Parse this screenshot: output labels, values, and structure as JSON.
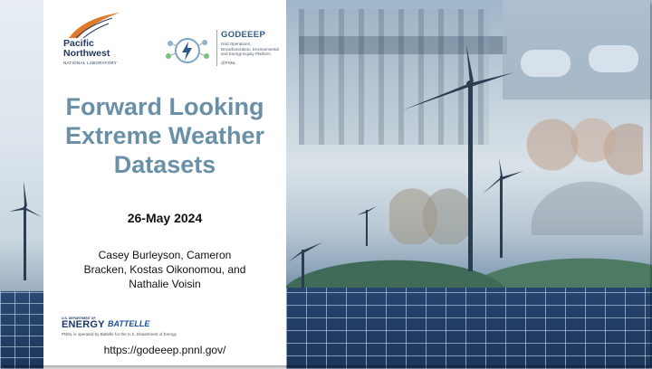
{
  "slide": {
    "title_lines": [
      "Forward Looking",
      "Extreme Weather",
      "Datasets"
    ],
    "date": "26-May 2024",
    "authors_lines": [
      "Casey Burleyson, Cameron",
      "Bracken, Kostas Oikonomou, and",
      "Nathalie Voisin"
    ],
    "url": "https://godeeep.pnnl.gov/"
  },
  "pnnl_logo": {
    "name_lines": [
      "Pacific",
      "Northwest"
    ],
    "subtitle": "NATIONAL LABORATORY"
  },
  "godeeep_logo": {
    "title": "GODEEEP",
    "description": "Grid Operations, Decarbonization, Environmental and Energy Equity Platform",
    "org": "@PNNL"
  },
  "footer_logos": {
    "doe_small": "U.S. DEPARTMENT OF",
    "doe_energy": "ENERGY",
    "battelle": "BATTELLE",
    "operated_by": "PNNL is operated by Battelle for the U.S. Department of Energy"
  },
  "colors": {
    "title": "#6a90a8",
    "pnnl_navy": "#23395d",
    "godeeep_blue": "#2f5c86",
    "swoosh_orange": "#e07a2a"
  }
}
